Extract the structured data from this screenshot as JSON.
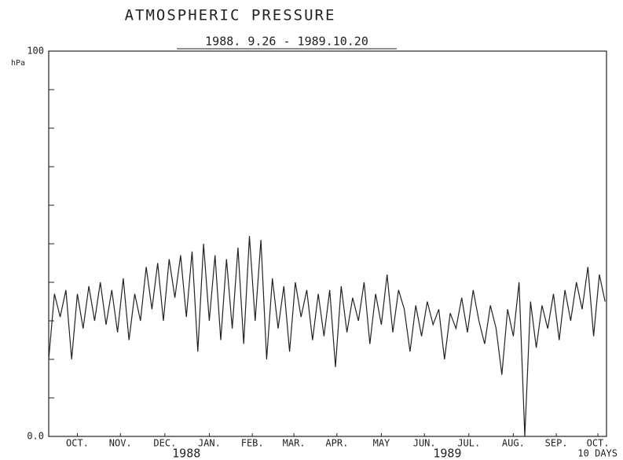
{
  "chart_data": {
    "type": "line",
    "title": "ATMOSPHERIC PRESSURE",
    "subtitle": "1988. 9.26 - 1989.10.20",
    "y_unit": "hPa",
    "color": "#222222",
    "xlim": [
      "1988-09-26",
      "1989-10-20"
    ],
    "ylim": [
      0,
      100
    ],
    "yticks": [
      {
        "value": 0,
        "label": "0.0"
      },
      {
        "value": 10,
        "label": null
      },
      {
        "value": 20,
        "label": null
      },
      {
        "value": 30,
        "label": null
      },
      {
        "value": 40,
        "label": null
      },
      {
        "value": 50,
        "label": null
      },
      {
        "value": 60,
        "label": null
      },
      {
        "value": 70,
        "label": null
      },
      {
        "value": 80,
        "label": null
      },
      {
        "value": 90,
        "label": null
      },
      {
        "value": 100,
        "label": "100"
      }
    ],
    "xticks": [
      {
        "value": "1988-10-16",
        "label": "OCT."
      },
      {
        "value": "1988-11-15",
        "label": "NOV."
      },
      {
        "value": "1988-12-16",
        "label": "DEC."
      },
      {
        "value": "1989-01-16",
        "label": "JAN."
      },
      {
        "value": "1989-02-15",
        "label": "FEB."
      },
      {
        "value": "1989-03-16",
        "label": "MAR."
      },
      {
        "value": "1989-04-15",
        "label": "APR."
      },
      {
        "value": "1989-05-16",
        "label": "MAY"
      },
      {
        "value": "1989-06-15",
        "label": "JUN."
      },
      {
        "value": "1989-07-16",
        "label": "JUL."
      },
      {
        "value": "1989-08-16",
        "label": "AUG."
      },
      {
        "value": "1989-09-15",
        "label": "SEP."
      },
      {
        "value": "1989-10-14",
        "label": "OCT."
      }
    ],
    "year_labels": [
      {
        "value": "1988-12-31",
        "label": "1988"
      },
      {
        "value": "1989-07-01",
        "label": "1989"
      }
    ],
    "x_unit": "10 DAYS",
    "x": [
      "1988-09-26",
      "1988-09-30",
      "1988-10-04",
      "1988-10-08",
      "1988-10-12",
      "1988-10-16",
      "1988-10-20",
      "1988-10-24",
      "1988-10-28",
      "1988-11-01",
      "1988-11-05",
      "1988-11-09",
      "1988-11-13",
      "1988-11-17",
      "1988-11-21",
      "1988-11-25",
      "1988-11-29",
      "1988-12-03",
      "1988-12-07",
      "1988-12-11",
      "1988-12-15",
      "1988-12-19",
      "1988-12-23",
      "1988-12-27",
      "1988-12-31",
      "1989-01-04",
      "1989-01-08",
      "1989-01-12",
      "1989-01-16",
      "1989-01-20",
      "1989-01-24",
      "1989-01-28",
      "1989-02-01",
      "1989-02-05",
      "1989-02-09",
      "1989-02-13",
      "1989-02-17",
      "1989-02-21",
      "1989-02-25",
      "1989-03-01",
      "1989-03-05",
      "1989-03-09",
      "1989-03-13",
      "1989-03-17",
      "1989-03-21",
      "1989-03-25",
      "1989-03-29",
      "1989-04-02",
      "1989-04-06",
      "1989-04-10",
      "1989-04-14",
      "1989-04-18",
      "1989-04-22",
      "1989-04-26",
      "1989-04-30",
      "1989-05-04",
      "1989-05-08",
      "1989-05-12",
      "1989-05-16",
      "1989-05-20",
      "1989-05-24",
      "1989-05-28",
      "1989-06-01",
      "1989-06-05",
      "1989-06-09",
      "1989-06-13",
      "1989-06-17",
      "1989-06-21",
      "1989-06-25",
      "1989-06-29",
      "1989-07-03",
      "1989-07-07",
      "1989-07-11",
      "1989-07-15",
      "1989-07-19",
      "1989-07-23",
      "1989-07-27",
      "1989-07-31",
      "1989-08-04",
      "1989-08-08",
      "1989-08-12",
      "1989-08-16",
      "1989-08-20",
      "1989-08-24",
      "1989-08-28",
      "1989-09-01",
      "1989-09-05",
      "1989-09-09",
      "1989-09-13",
      "1989-09-17",
      "1989-09-21",
      "1989-09-25",
      "1989-09-29",
      "1989-10-03",
      "1989-10-07",
      "1989-10-11",
      "1989-10-15",
      "1989-10-19"
    ],
    "values": [
      20,
      37,
      31,
      38,
      20,
      37,
      28,
      39,
      30,
      40,
      29,
      38,
      27,
      41,
      25,
      37,
      30,
      44,
      33,
      45,
      30,
      46,
      36,
      47,
      31,
      48,
      22,
      50,
      30,
      47,
      25,
      46,
      28,
      49,
      24,
      52,
      30,
      51,
      20,
      41,
      28,
      39,
      22,
      40,
      31,
      38,
      25,
      37,
      26,
      38,
      18,
      39,
      27,
      36,
      30,
      40,
      24,
      37,
      29,
      42,
      27,
      38,
      33,
      22,
      34,
      26,
      35,
      29,
      33,
      20,
      32,
      28,
      36,
      27,
      38,
      30,
      24,
      34,
      28,
      16,
      33,
      26,
      40,
      0,
      35,
      23,
      34,
      28,
      37,
      25,
      38,
      30,
      40,
      33,
      44,
      26,
      42,
      35
    ]
  }
}
